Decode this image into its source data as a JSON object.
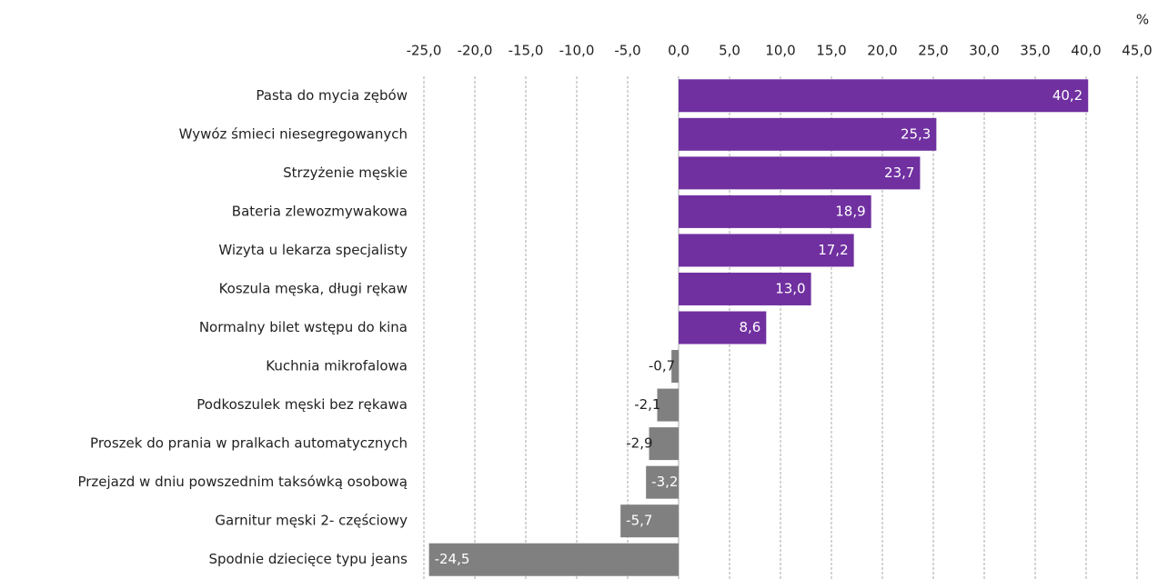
{
  "chart_data": {
    "type": "hbar",
    "unit_label": "%",
    "categories": [
      "Pasta do mycia zębów",
      "Wywóz śmieci niesegregowanych",
      "Strzyżenie męskie",
      "Bateria zlewozmywakowa",
      "Wizyta u lekarza specjalisty",
      "Koszula męska, długi rękaw",
      "Normalny bilet wstępu do kina",
      "Kuchnia mikrofalowa",
      "Podkoszulek męski bez rękawa",
      "Proszek do prania w pralkach automatycznych",
      "Przejazd w dniu powszednim taksówką osobową",
      "Garnitur męski 2- częściowy",
      "Spodnie dziecięce typu jeans"
    ],
    "values": [
      40.2,
      25.3,
      23.7,
      18.9,
      17.2,
      13.0,
      8.6,
      -0.7,
      -2.1,
      -2.9,
      -3.2,
      -5.7,
      -24.5
    ],
    "value_labels": [
      "40,2",
      "25,3",
      "23,7",
      "18,9",
      "17,2",
      "13,0",
      "8,6",
      "-0,7",
      "-2,1",
      "-2,9",
      "-3,2",
      "-5,7",
      "-24,5"
    ],
    "colors": [
      "#7030a0",
      "#7030a0",
      "#7030a0",
      "#7030a0",
      "#7030a0",
      "#7030a0",
      "#7030a0",
      "#808080",
      "#808080",
      "#808080",
      "#808080",
      "#808080",
      "#808080"
    ],
    "xlim": [
      -25,
      45
    ],
    "xticks": [
      {
        "value": -25,
        "label": "-25,0"
      },
      {
        "value": -20,
        "label": "-20,0"
      },
      {
        "value": -15,
        "label": "-15,0"
      },
      {
        "value": -10,
        "label": "-10,0"
      },
      {
        "value": -5,
        "label": "-5,0"
      },
      {
        "value": 0,
        "label": "0,0"
      },
      {
        "value": 5,
        "label": "5,0"
      },
      {
        "value": 10,
        "label": "10,0"
      },
      {
        "value": 15,
        "label": "15,0"
      },
      {
        "value": 20,
        "label": "20,0"
      },
      {
        "value": 25,
        "label": "25,0"
      },
      {
        "value": 30,
        "label": "30,0"
      },
      {
        "value": 35,
        "label": "35,0"
      },
      {
        "value": 40,
        "label": "40,0"
      },
      {
        "value": 45,
        "label": "45,0"
      }
    ],
    "grid": true
  }
}
